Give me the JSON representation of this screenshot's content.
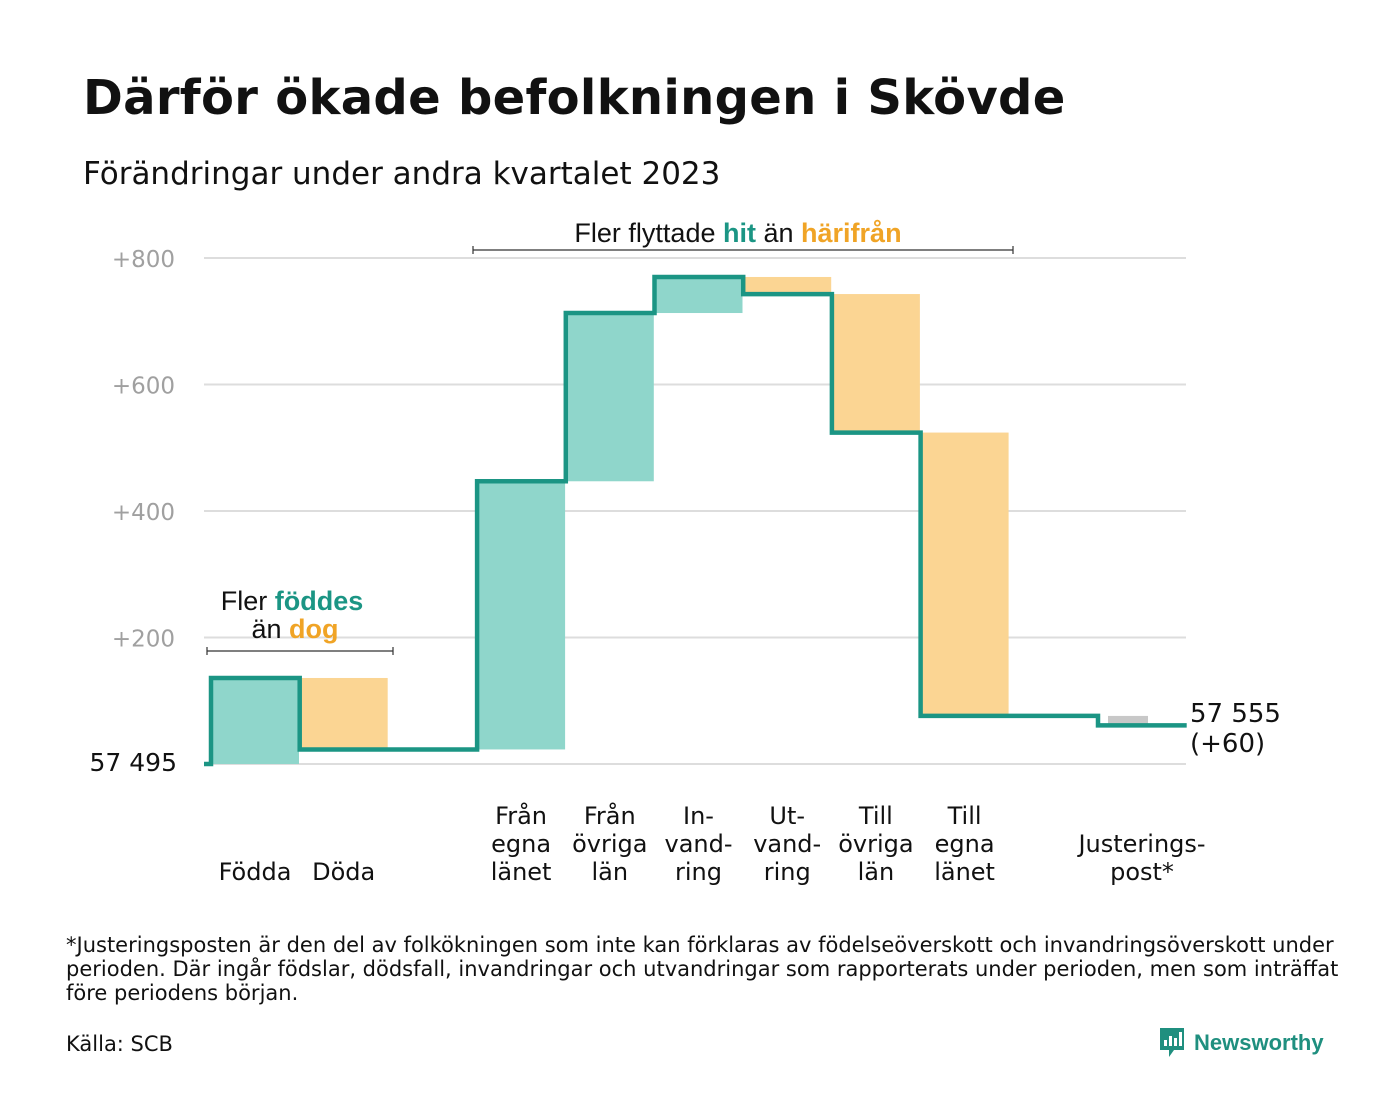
{
  "title": "Därför ökade befolkningen i Skövde",
  "subtitle": "Förändringar under andra kvartalet 2023",
  "colors": {
    "increase": "#8fd6cb",
    "decrease": "#fbd593",
    "adjustment": "#c8c8c8",
    "line": "#1b9584",
    "accent_teal": "#1b9584",
    "accent_orange": "#f0a426",
    "grid": "#dddddd",
    "tick": "#a0a0a0"
  },
  "annotations": {
    "births": {
      "line1_prefix": "Fler",
      "line1_highlight": "föddes",
      "line2_prefix": "än",
      "line2_highlight": "dog"
    },
    "migration": {
      "prefix": "Fler flyttade",
      "highlight1": "hit",
      "middle": "än",
      "highlight2": "härifrån"
    }
  },
  "footnote": "*Justeringsposten är den del av folkökningen som inte kan förklaras av födelseöverskott och invandringsöverskott under perioden. Där ingår födslar, dödsfall, invandringar och utvandringar som rapporterats under perioden, men som inträffat före periodens början.",
  "source": "Källa: SCB",
  "brand": "Newsworthy",
  "chart_data": {
    "type": "waterfall",
    "title": "Därför ökade befolkningen i Skövde",
    "subtitle": "Förändringar under andra kvartalet 2023",
    "base_population": 57495,
    "base_label": "57  495",
    "end_label": "57 555",
    "end_change_label": "(+60)",
    "ylim": [
      0,
      800
    ],
    "y_ticks": [
      {
        "value": 200,
        "label": "+200"
      },
      {
        "value": 400,
        "label": "+400"
      },
      {
        "value": 600,
        "label": "+600"
      },
      {
        "value": 800,
        "label": "+800"
      }
    ],
    "grid": true,
    "steps": [
      {
        "label_lines": [
          "Födda"
        ],
        "change": 136,
        "kind": "increase"
      },
      {
        "label_lines": [
          "Döda"
        ],
        "change": -113,
        "kind": "decrease"
      },
      {
        "label_lines": [],
        "change": 0,
        "kind": "gap"
      },
      {
        "label_lines": [
          "Från",
          "egna",
          "länet"
        ],
        "change": 424,
        "kind": "increase"
      },
      {
        "label_lines": [
          "Från",
          "övriga",
          "län"
        ],
        "change": 266,
        "kind": "increase"
      },
      {
        "label_lines": [
          "In-",
          "vand-",
          "ring"
        ],
        "change": 57,
        "kind": "increase"
      },
      {
        "label_lines": [
          "Ut-",
          "vand-",
          "ring"
        ],
        "change": -27,
        "kind": "decrease"
      },
      {
        "label_lines": [
          "Till",
          "övriga",
          "län"
        ],
        "change": -219,
        "kind": "decrease"
      },
      {
        "label_lines": [
          "Till",
          "egna",
          "länet"
        ],
        "change": -448,
        "kind": "decrease"
      },
      {
        "label_lines": [],
        "change": 0,
        "kind": "gap"
      },
      {
        "label_lines": [
          "Justerings-",
          "post*"
        ],
        "change": -15,
        "kind": "adjustment"
      }
    ],
    "final_change": 60
  }
}
